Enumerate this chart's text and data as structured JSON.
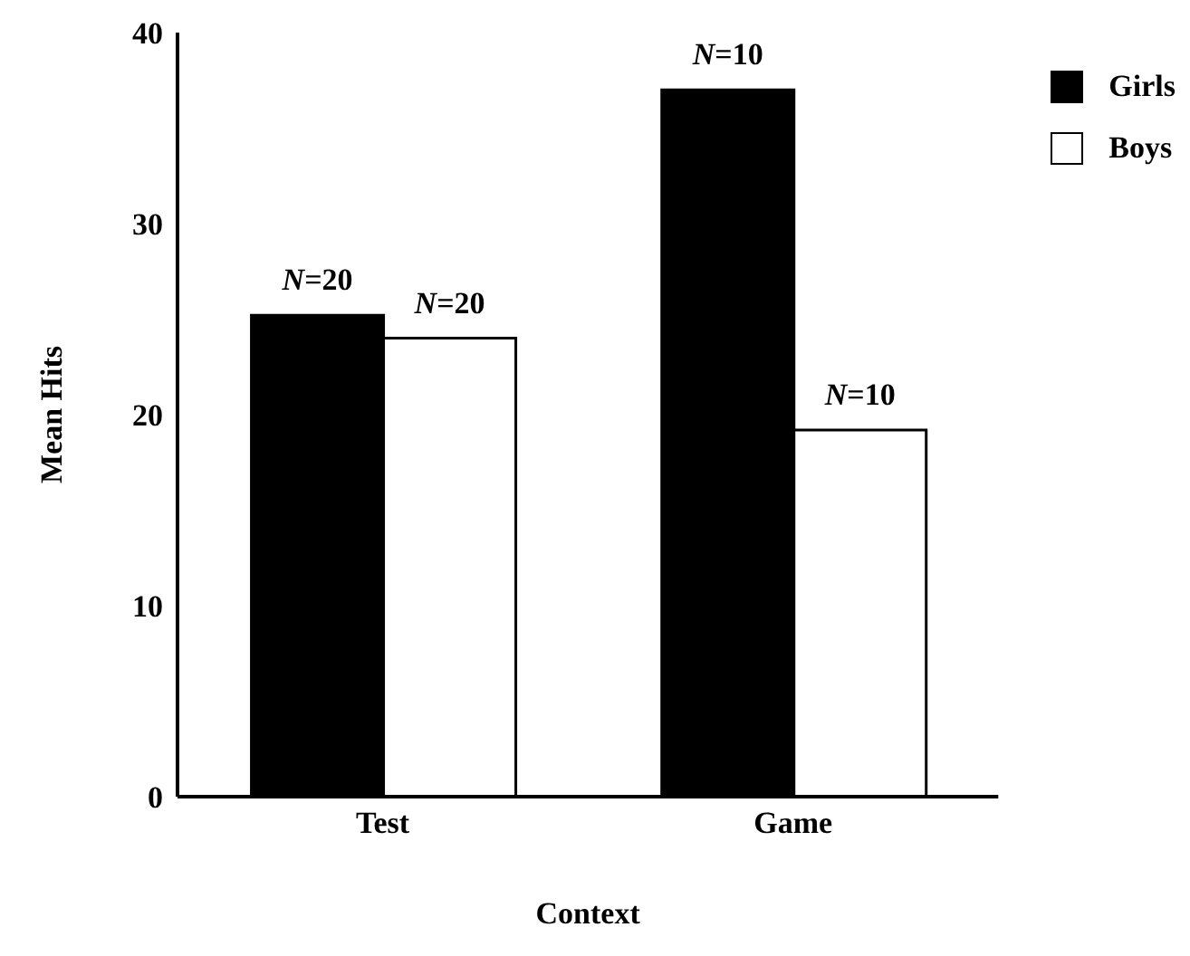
{
  "chart_data": {
    "type": "bar",
    "xlabel": "Context",
    "ylabel": "Mean Hits",
    "categories": [
      "Test",
      "Game"
    ],
    "series": [
      {
        "name": "Girls",
        "color": "#000000",
        "values": [
          25.2,
          37.0
        ]
      },
      {
        "name": "Boys",
        "color": "#ffffff",
        "values": [
          24.0,
          19.2
        ]
      }
    ],
    "annotations": [
      {
        "text": "N=20",
        "x": "Test",
        "y": 25.2
      },
      {
        "text": "N=20",
        "x": "Test",
        "y": 24.0
      },
      {
        "text": "N=10",
        "x": "Game",
        "y": 37.0
      },
      {
        "text": "N=10",
        "x": "Game",
        "y": 19.2
      }
    ],
    "ylim": [
      0,
      40
    ],
    "yticks": [
      0,
      10,
      20,
      30,
      40
    ],
    "grid": false,
    "legend": "top right"
  }
}
